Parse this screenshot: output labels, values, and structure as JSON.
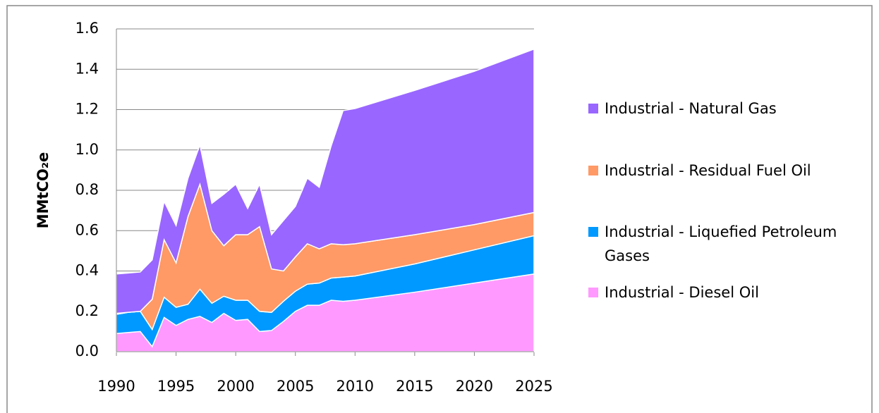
{
  "chart_data": {
    "type": "area",
    "ylabel": "MMtCO₂e",
    "x": [
      1990,
      1991,
      1992,
      1993,
      1994,
      1995,
      1996,
      1997,
      1998,
      1999,
      2000,
      2001,
      2002,
      2003,
      2004,
      2005,
      2006,
      2007,
      2008,
      2009,
      2010,
      2015,
      2020,
      2025
    ],
    "series": [
      {
        "name": "Industrial - Diesel Oil",
        "color": "#ff99ff",
        "values": [
          0.09,
          0.095,
          0.1,
          0.025,
          0.17,
          0.13,
          0.16,
          0.175,
          0.145,
          0.19,
          0.155,
          0.16,
          0.1,
          0.105,
          0.15,
          0.2,
          0.23,
          0.23,
          0.255,
          0.25,
          0.255,
          0.295,
          0.34,
          0.385
        ]
      },
      {
        "name": "Industrial - Liquefied Petroleum Gases",
        "color": "#0099ff",
        "values": [
          0.095,
          0.1,
          0.1,
          0.085,
          0.1,
          0.09,
          0.075,
          0.135,
          0.095,
          0.085,
          0.1,
          0.095,
          0.1,
          0.09,
          0.1,
          0.1,
          0.105,
          0.11,
          0.11,
          0.12,
          0.12,
          0.14,
          0.165,
          0.19
        ]
      },
      {
        "name": "Industrial - Residual Fuel Oil",
        "color": "#ff9966",
        "values": [
          0.005,
          0,
          0,
          0.15,
          0.285,
          0.22,
          0.435,
          0.52,
          0.36,
          0.25,
          0.325,
          0.325,
          0.42,
          0.215,
          0.15,
          0.17,
          0.2,
          0.17,
          0.17,
          0.16,
          0.16,
          0.145,
          0.125,
          0.115
        ]
      },
      {
        "name": "Industrial - Natural Gas",
        "color": "#9966ff",
        "values": [
          0.195,
          0.195,
          0.195,
          0.195,
          0.19,
          0.185,
          0.19,
          0.195,
          0.135,
          0.255,
          0.25,
          0.13,
          0.21,
          0.17,
          0.25,
          0.25,
          0.325,
          0.305,
          0.485,
          0.665,
          0.67,
          0.715,
          0.76,
          0.81
        ]
      }
    ],
    "stacked": true,
    "xlim": [
      1990,
      2025
    ],
    "xticks": [
      1990,
      1995,
      2000,
      2005,
      2010,
      2015,
      2020,
      2025
    ],
    "ylim": [
      0,
      1.6
    ],
    "yticks": [
      {
        "value": 0,
        "label": "0.0"
      },
      0.2,
      0.4,
      0.6,
      0.8,
      {
        "value": 1,
        "label": "1.0"
      },
      1.2,
      1.4,
      1.6
    ],
    "grid": true,
    "legend": "right"
  }
}
